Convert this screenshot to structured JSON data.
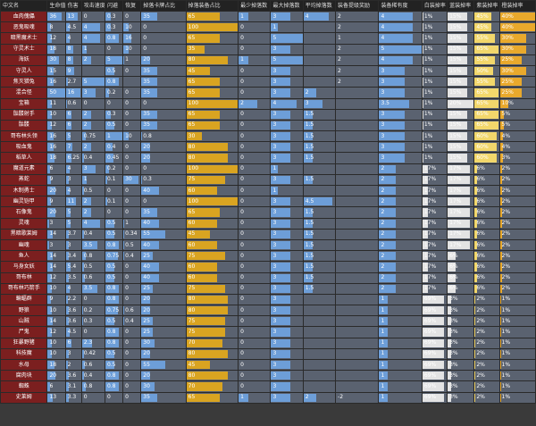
{
  "headers": [
    "中文名",
    "生命值",
    "伤害",
    "攻击速度",
    "闪避",
    "恢复",
    "掉落卡牌占比",
    "掉落装备占比",
    "最少掉落数",
    "最大掉落数",
    "平均掉落数",
    "装备提级奖励",
    "装备稀有度",
    "白装掉率",
    "蓝装掉率",
    "紫装掉率",
    "橙装掉率"
  ],
  "rows": [
    {
      "name": "血肉傀儡",
      "hp": "36",
      "dmg": "13",
      "aspd": "0",
      "dodge": "0.3",
      "regen": "0",
      "card": "35",
      "equip": "65",
      "min": "1",
      "max": "3",
      "avg": "4",
      "up": "2",
      "rar": "4",
      "w": "1%",
      "b": "15%",
      "p": "45%",
      "o": "40%"
    },
    {
      "name": "恶鬼吸魂",
      "hp": "8",
      "dmg": "4.5",
      "aspd": "4",
      "dodge": "0.3",
      "regen": "10",
      "card": "0",
      "equip": "100",
      "min": "0",
      "max": "1",
      "avg": "",
      "up": "2",
      "rar": "4",
      "w": "1%",
      "b": "15%",
      "p": "45%",
      "o": "40%"
    },
    {
      "name": "暗黑魔术士",
      "hp": "12",
      "dmg": "4",
      "aspd": "4",
      "dodge": "0.8",
      "regen": "16",
      "card": "0",
      "equip": "65",
      "min": "0",
      "max": "5",
      "avg": "",
      "up": "1",
      "rar": "4",
      "w": "1%",
      "b": "15%",
      "p": "55%",
      "o": "30%"
    },
    {
      "name": "守灵术士",
      "hp": "18",
      "dmg": "8",
      "aspd": "1",
      "dodge": "0",
      "regen": "10",
      "card": "0",
      "equip": "35",
      "min": "0",
      "max": "3",
      "avg": "",
      "up": "2",
      "rar": "5",
      "w": "1%",
      "b": "15%",
      "p": "65%",
      "o": "30%"
    },
    {
      "name": "海妖",
      "hp": "30",
      "dmg": "8",
      "aspd": "2",
      "dodge": "5",
      "regen": "1",
      "card": "20",
      "equip": "80",
      "min": "1",
      "max": "5",
      "avg": "",
      "up": "2",
      "rar": "4",
      "w": "1%",
      "b": "15%",
      "p": "55%",
      "o": "25%"
    },
    {
      "name": "守灵人",
      "hp": "15",
      "dmg": "9",
      "aspd": "",
      "dodge": "0.5",
      "regen": "0",
      "card": "35",
      "equip": "45",
      "min": "0",
      "max": "3",
      "avg": "",
      "up": "2",
      "rar": "3",
      "w": "1%",
      "b": "15%",
      "p": "50%",
      "o": "30%"
    },
    {
      "name": "焦灭猎兔",
      "hp": "16",
      "dmg": "2.7",
      "aspd": "5",
      "dodge": "0.8",
      "regen": "",
      "card": "35",
      "equip": "65",
      "min": "0",
      "max": "3",
      "avg": "",
      "up": "2",
      "rar": "3",
      "w": "1%",
      "b": "15%",
      "p": "55%",
      "o": "25%"
    },
    {
      "name": "混合怪",
      "hp": "50",
      "dmg": "16",
      "aspd": "3",
      "dodge": "0.2",
      "regen": "0",
      "card": "35",
      "equip": "65",
      "min": "0",
      "max": "3",
      "avg": "2",
      "up": "",
      "rar": "3",
      "w": "1%",
      "b": "15%",
      "p": "65%",
      "o": "25%"
    },
    {
      "name": "宝箱",
      "hp": "11",
      "dmg": "0.6",
      "aspd": "0",
      "dodge": "0",
      "regen": "0",
      "card": "0",
      "equip": "100",
      "min": "2",
      "max": "4",
      "avg": "3",
      "up": "",
      "rar": "3.5",
      "w": "1%",
      "b": "20%",
      "p": "65%",
      "o": "10%"
    },
    {
      "name": "骷髅射手",
      "hp": "10",
      "dmg": "6",
      "aspd": "2",
      "dodge": "0.3",
      "regen": "0",
      "card": "35",
      "equip": "65",
      "min": "0",
      "max": "3",
      "avg": "1.5",
      "up": "",
      "rar": "3",
      "w": "1%",
      "b": "15%",
      "p": "65%",
      "o": "5%"
    },
    {
      "name": "骷髅",
      "hp": "12",
      "dmg": "6",
      "aspd": "2",
      "dodge": "0.5",
      "regen": "0",
      "card": "35",
      "equip": "65",
      "min": "0",
      "max": "3",
      "avg": "1.5",
      "up": "",
      "rar": "3",
      "w": "1%",
      "b": "15%",
      "p": "65%",
      "o": "5%"
    },
    {
      "name": "哥布林头领",
      "hp": "16",
      "dmg": "5",
      "aspd": "0.75",
      "dodge": "1",
      "regen": "10",
      "card": "0.8",
      "equip": "30",
      "min": "0",
      "max": "3",
      "avg": "1.5",
      "up": "",
      "rar": "3",
      "w": "1%",
      "b": "15%",
      "p": "60%",
      "o": "4%"
    },
    {
      "name": "吸血鬼",
      "hp": "16",
      "dmg": "7",
      "aspd": "2",
      "dodge": "0.4",
      "regen": "0",
      "card": "20",
      "equip": "80",
      "min": "0",
      "max": "3",
      "avg": "1.5",
      "up": "",
      "rar": "3",
      "w": "1%",
      "b": "15%",
      "p": "60%",
      "o": "4%"
    },
    {
      "name": "稻草人",
      "hp": "18",
      "dmg": "6.25",
      "aspd": "0.4",
      "dodge": "0.45",
      "regen": "0",
      "card": "20",
      "equip": "80",
      "min": "0",
      "max": "3",
      "avg": "1.5",
      "up": "",
      "rar": "3",
      "w": "1%",
      "b": "15%",
      "p": "60%",
      "o": "3%"
    },
    {
      "name": "魔道元素",
      "hp": "6",
      "dmg": "4",
      "aspd": "3",
      "dodge": "0.2",
      "regen": "0",
      "card": "0",
      "equip": "100",
      "min": "0",
      "max": "1",
      "avg": "",
      "up": "",
      "rar": "2",
      "w": "17%",
      "b": "17%",
      "p": "6%",
      "o": "2%"
    },
    {
      "name": "蒸蛇",
      "hp": "9",
      "dmg": "3",
      "aspd": "1",
      "dodge": "0.1",
      "regen": "30",
      "card": "0.3",
      "equip": "75",
      "min": "0",
      "max": "3",
      "avg": "1.5",
      "up": "",
      "rar": "2",
      "w": "17%",
      "b": "17%",
      "p": "6%",
      "o": "2%"
    },
    {
      "name": "木制勇士",
      "hp": "20",
      "dmg": "4",
      "aspd": "0.5",
      "dodge": "0",
      "regen": "0",
      "card": "40",
      "equip": "60",
      "min": "0",
      "max": "1",
      "avg": "",
      "up": "",
      "rar": "2",
      "w": "17%",
      "b": "17%",
      "p": "6%",
      "o": "2%"
    },
    {
      "name": "幽灵铠甲",
      "hp": "9",
      "dmg": "11",
      "aspd": "2",
      "dodge": "0.1",
      "regen": "0",
      "card": "0",
      "equip": "100",
      "min": "0",
      "max": "3",
      "avg": "4.5",
      "up": "",
      "rar": "2",
      "w": "17%",
      "b": "17%",
      "p": "6%",
      "o": "2%"
    },
    {
      "name": "石像鬼",
      "hp": "20",
      "dmg": "5",
      "aspd": "2",
      "dodge": "0",
      "regen": "0",
      "card": "35",
      "equip": "65",
      "min": "0",
      "max": "3",
      "avg": "1.5",
      "up": "",
      "rar": "2",
      "w": "17%",
      "b": "17%",
      "p": "6%",
      "o": "2%"
    },
    {
      "name": "灵魂",
      "hp": "3",
      "dmg": "5",
      "aspd": "4",
      "dodge": "0.5",
      "regen": "1",
      "card": "40",
      "equip": "60",
      "min": "0",
      "max": "3",
      "avg": "1.5",
      "up": "",
      "rar": "2",
      "w": "17%",
      "b": "17%",
      "p": "6%",
      "o": "2%"
    },
    {
      "name": "黑暗歌莱姆",
      "hp": "14",
      "dmg": "3.7",
      "aspd": "0.4",
      "dodge": "0.5",
      "regen": "0.34",
      "card": "55",
      "equip": "45",
      "min": "0",
      "max": "3",
      "avg": "1.5",
      "up": "",
      "rar": "2",
      "w": "17%",
      "b": "17%",
      "p": "6%",
      "o": "2%"
    },
    {
      "name": "幽魂",
      "hp": "3",
      "dmg": "3",
      "aspd": "3.5",
      "dodge": "0.8",
      "regen": "0.5",
      "card": "40",
      "equip": "60",
      "min": "0",
      "max": "3",
      "avg": "1.5",
      "up": "",
      "rar": "2",
      "w": "17%",
      "b": "17%",
      "p": "6%",
      "o": "2%"
    },
    {
      "name": "鱼人",
      "hp": "14",
      "dmg": "3.4",
      "aspd": "0.8",
      "dodge": "0.75",
      "regen": "0.4",
      "card": "25",
      "equip": "75",
      "min": "0",
      "max": "3",
      "avg": "1.5",
      "up": "",
      "rar": "2",
      "w": "17%",
      "b": "6%",
      "p": "6%",
      "o": "2%"
    },
    {
      "name": "马身女妖",
      "hp": "14",
      "dmg": "5.4",
      "aspd": "0.5",
      "dodge": "0.5",
      "regen": "0",
      "card": "40",
      "equip": "60",
      "min": "0",
      "max": "3",
      "avg": "1.5",
      "up": "",
      "rar": "2",
      "w": "17%",
      "b": "6%",
      "p": "6%",
      "o": "2%"
    },
    {
      "name": "哥布林",
      "hp": "12",
      "dmg": "3.5",
      "aspd": "0.6",
      "dodge": "0.5",
      "regen": "0",
      "card": "40",
      "equip": "60",
      "min": "0",
      "max": "3",
      "avg": "1.5",
      "up": "",
      "rar": "2",
      "w": "17%",
      "b": "6%",
      "p": "6%",
      "o": "2%"
    },
    {
      "name": "哥布林巧箭手",
      "hp": "10",
      "dmg": "4",
      "aspd": "3.5",
      "dodge": "0.8",
      "regen": "0",
      "card": "25",
      "equip": "75",
      "min": "0",
      "max": "3",
      "avg": "1.5",
      "up": "",
      "rar": "2",
      "w": "17%",
      "b": "6%",
      "p": "6%",
      "o": "2%"
    },
    {
      "name": "蝙蝠群",
      "hp": "9",
      "dmg": "2.2",
      "aspd": "0",
      "dodge": "0.8",
      "regen": "0",
      "card": "20",
      "equip": "80",
      "min": "0",
      "max": "3",
      "avg": "",
      "up": "",
      "rar": "1",
      "w": "69%",
      "b": "3%",
      "p": "2%",
      "o": "1%"
    },
    {
      "name": "野狼",
      "hp": "10",
      "dmg": "3.6",
      "aspd": "0.2",
      "dodge": "0.75",
      "regen": "0.6",
      "card": "20",
      "equip": "80",
      "min": "0",
      "max": "3",
      "avg": "",
      "up": "",
      "rar": "1",
      "w": "69%",
      "b": "3%",
      "p": "2%",
      "o": "1%"
    },
    {
      "name": "山贼",
      "hp": "14",
      "dmg": "3.6",
      "aspd": "0.3",
      "dodge": "0.5",
      "regen": "0.4",
      "card": "25",
      "equip": "75",
      "min": "0",
      "max": "3",
      "avg": "",
      "up": "",
      "rar": "1",
      "w": "69%",
      "b": "3%",
      "p": "2%",
      "o": "1%"
    },
    {
      "name": "尸鬼",
      "hp": "12",
      "dmg": "4.5",
      "aspd": "0",
      "dodge": "0.8",
      "regen": "0",
      "card": "25",
      "equip": "75",
      "min": "0",
      "max": "3",
      "avg": "",
      "up": "",
      "rar": "1",
      "w": "69%",
      "b": "3%",
      "p": "2%",
      "o": "1%"
    },
    {
      "name": "狂暴野猪",
      "hp": "10",
      "dmg": "6",
      "aspd": "2.3",
      "dodge": "0.8",
      "regen": "0",
      "card": "30",
      "equip": "70",
      "min": "0",
      "max": "3",
      "avg": "",
      "up": "",
      "rar": "1",
      "w": "69%",
      "b": "3%",
      "p": "2%",
      "o": "1%"
    },
    {
      "name": "科技魔",
      "hp": "10",
      "dmg": "3",
      "aspd": "0.42",
      "dodge": "0.5",
      "regen": "0",
      "card": "20",
      "equip": "80",
      "min": "0",
      "max": "3",
      "avg": "",
      "up": "",
      "rar": "1",
      "w": "69%",
      "b": "3%",
      "p": "2%",
      "o": "1%"
    },
    {
      "name": "水母",
      "hp": "18",
      "dmg": "2",
      "aspd": "0.6",
      "dodge": "0.5",
      "regen": "0",
      "card": "55",
      "equip": "45",
      "min": "0",
      "max": "3",
      "avg": "",
      "up": "",
      "rar": "1",
      "w": "69%",
      "b": "3%",
      "p": "2%",
      "o": "1%"
    },
    {
      "name": "腐肉块",
      "hp": "20",
      "dmg": "3.6",
      "aspd": "0.4",
      "dodge": "0.8",
      "regen": "0",
      "card": "20",
      "equip": "80",
      "min": "0",
      "max": "3",
      "avg": "",
      "up": "",
      "rar": "1",
      "w": "69%",
      "b": "3%",
      "p": "2%",
      "o": "1%"
    },
    {
      "name": "蜘蛛",
      "hp": "6",
      "dmg": "3.1",
      "aspd": "0.8",
      "dodge": "0.8",
      "regen": "0",
      "card": "30",
      "equip": "70",
      "min": "0",
      "max": "3",
      "avg": "",
      "up": "",
      "rar": "1",
      "w": "69%",
      "b": "3%",
      "p": "2%",
      "o": "1%"
    },
    {
      "name": "史莱姆",
      "hp": "13",
      "dmg": "3.3",
      "aspd": "0",
      "dodge": "0",
      "regen": "0",
      "card": "35",
      "equip": "65",
      "min": "1",
      "max": "3",
      "avg": "2",
      "up": "-2",
      "rar": "1",
      "w": "69%",
      "b": "3%",
      "p": "2%",
      "o": "1%"
    }
  ]
}
